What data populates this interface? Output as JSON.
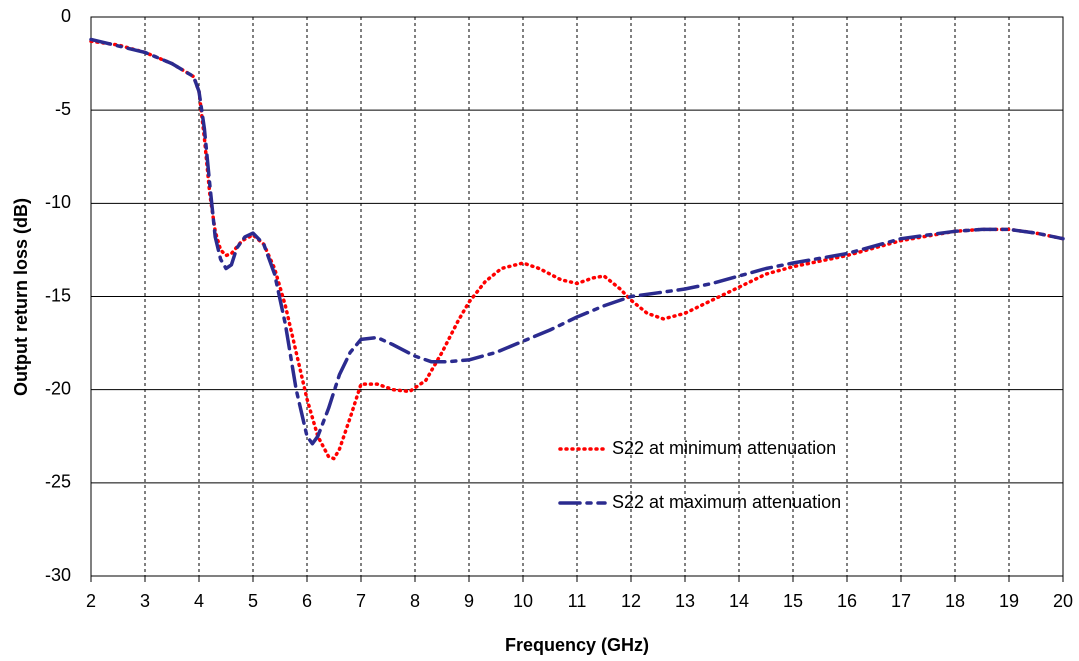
{
  "chart_data": {
    "type": "line",
    "xlabel": "Frequency (GHz)",
    "ylabel": "Output return loss (dB)",
    "xlim": [
      2,
      20
    ],
    "ylim": [
      -30,
      0
    ],
    "xticks": [
      2,
      3,
      4,
      5,
      6,
      7,
      8,
      9,
      10,
      11,
      12,
      13,
      14,
      15,
      16,
      17,
      18,
      19,
      20
    ],
    "yticks": [
      0,
      -5,
      -10,
      -15,
      -20,
      -25,
      -30
    ],
    "grid": true,
    "legend_position": "lower right",
    "series": [
      {
        "name": "S22 at minimum attenuation",
        "color": "#ff0000",
        "line_style": "dotted",
        "x": [
          2,
          2.5,
          3,
          3.5,
          3.9,
          4.0,
          4.1,
          4.2,
          4.3,
          4.4,
          4.5,
          4.6,
          4.8,
          5.0,
          5.2,
          5.4,
          5.6,
          5.8,
          6.0,
          6.2,
          6.4,
          6.5,
          6.6,
          6.8,
          7.0,
          7.3,
          7.6,
          7.9,
          8.2,
          8.5,
          8.8,
          9.0,
          9.3,
          9.6,
          10,
          10.3,
          10.7,
          11,
          11.3,
          11.5,
          11.8,
          12,
          12.3,
          12.6,
          13,
          13.5,
          14,
          14.5,
          15,
          16,
          17,
          18,
          18.5,
          19,
          19.5,
          20
        ],
        "values": [
          -1.3,
          -1.5,
          -1.9,
          -2.5,
          -3.2,
          -4,
          -6.5,
          -9.5,
          -11.5,
          -12.5,
          -12.8,
          -12.7,
          -12,
          -11.7,
          -12.2,
          -13.5,
          -15.5,
          -18,
          -20.5,
          -22.5,
          -23.6,
          -23.7,
          -23.2,
          -21.5,
          -19.7,
          -19.7,
          -20,
          -20.1,
          -19.5,
          -18,
          -16.3,
          -15.3,
          -14.2,
          -13.5,
          -13.2,
          -13.5,
          -14.1,
          -14.3,
          -14,
          -13.9,
          -14.6,
          -15.2,
          -15.9,
          -16.2,
          -15.9,
          -15.2,
          -14.5,
          -13.8,
          -13.4,
          -12.8,
          -12,
          -11.5,
          -11.4,
          -11.4,
          -11.6,
          -11.9
        ]
      },
      {
        "name": "S22 at maximum attenuation",
        "color": "#2b2b8f",
        "line_style": "dash-dot",
        "x": [
          2,
          3,
          3.5,
          3.9,
          4.0,
          4.1,
          4.2,
          4.3,
          4.4,
          4.5,
          4.6,
          4.7,
          4.85,
          5.0,
          5.2,
          5.4,
          5.6,
          5.8,
          6.0,
          6.1,
          6.2,
          6.4,
          6.6,
          6.8,
          7.0,
          7.3,
          7.6,
          8.0,
          8.3,
          8.6,
          9,
          9.5,
          10,
          10.5,
          11,
          11.5,
          12,
          12.5,
          13,
          13.5,
          14,
          14.5,
          15,
          16,
          17,
          18,
          18.5,
          19,
          19.5,
          20
        ],
        "values": [
          -1.2,
          -1.9,
          -2.5,
          -3.2,
          -4.0,
          -6,
          -9,
          -11.8,
          -13,
          -13.5,
          -13.3,
          -12.4,
          -11.8,
          -11.6,
          -12.2,
          -13.8,
          -16.5,
          -20,
          -22.5,
          -22.9,
          -22.5,
          -21,
          -19.2,
          -18,
          -17.3,
          -17.2,
          -17.6,
          -18.2,
          -18.5,
          -18.5,
          -18.4,
          -18,
          -17.4,
          -16.8,
          -16.1,
          -15.5,
          -15,
          -14.8,
          -14.6,
          -14.3,
          -13.9,
          -13.5,
          -13.2,
          -12.7,
          -11.9,
          -11.5,
          -11.4,
          -11.4,
          -11.6,
          -11.9
        ]
      }
    ]
  }
}
